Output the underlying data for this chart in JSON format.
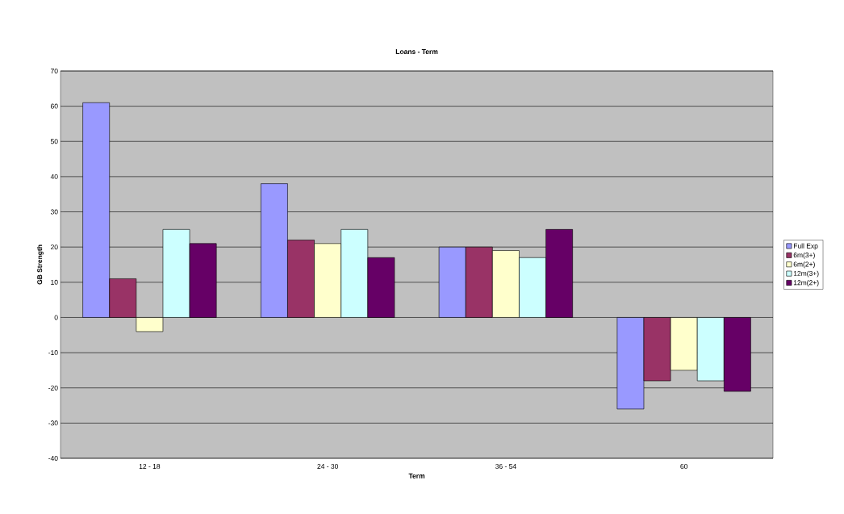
{
  "chart_data": {
    "type": "bar",
    "title": "Loans - Term",
    "xlabel": "Term",
    "ylabel": "GB Strength",
    "categories": [
      "12 - 18",
      "24 - 30",
      "36 - 54",
      "60"
    ],
    "series": [
      {
        "name": "Full Exp",
        "color": "#9999ff",
        "values": [
          61,
          38,
          20,
          -26
        ]
      },
      {
        "name": "6m(3+)",
        "color": "#993366",
        "values": [
          11,
          22,
          20,
          -18
        ]
      },
      {
        "name": "6m(2+)",
        "color": "#ffffcc",
        "values": [
          -4,
          21,
          19,
          -15
        ]
      },
      {
        "name": "12m(3+)",
        "color": "#ccffff",
        "values": [
          25,
          25,
          17,
          -18
        ]
      },
      {
        "name": "12m(2+)",
        "color": "#660066",
        "values": [
          21,
          17,
          25,
          -21
        ]
      }
    ],
    "ylim": [
      -40,
      70
    ],
    "yticks": [
      -40,
      -30,
      -20,
      -10,
      0,
      10,
      20,
      30,
      40,
      50,
      60,
      70
    ],
    "grid": "y",
    "legend": "right"
  }
}
